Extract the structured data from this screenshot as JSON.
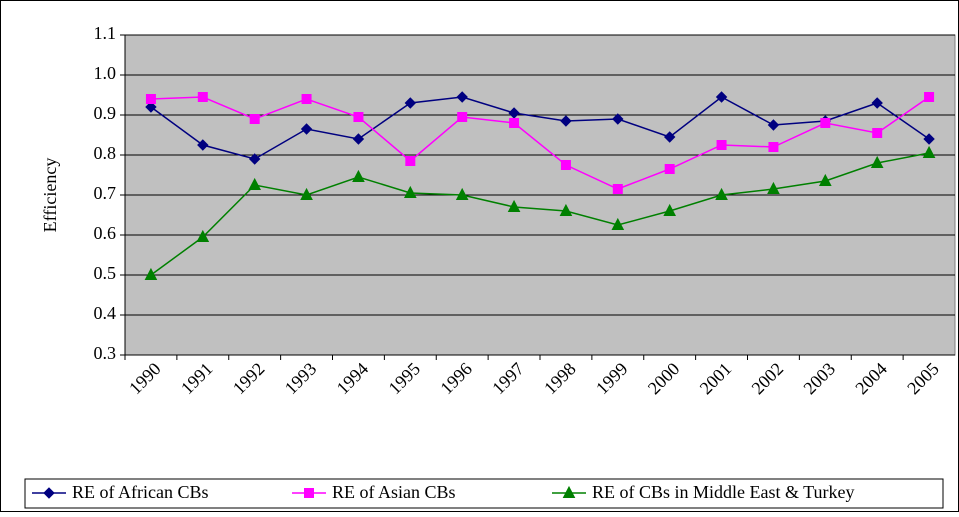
{
  "chart_data": {
    "type": "line",
    "y_label": "Efficiency",
    "categories": [
      "1990",
      "1991",
      "1992",
      "1993",
      "1994",
      "1995",
      "1996",
      "1997",
      "1998",
      "1999",
      "2000",
      "2001",
      "2002",
      "2003",
      "2004",
      "2005"
    ],
    "series": [
      {
        "name": "RE of African CBs",
        "color": "#000080",
        "marker": "diamond",
        "values": [
          0.92,
          0.825,
          0.79,
          0.865,
          0.84,
          0.93,
          0.945,
          0.905,
          0.885,
          0.89,
          0.845,
          0.945,
          0.875,
          0.885,
          0.93,
          0.84
        ]
      },
      {
        "name": "RE of Asian CBs",
        "color": "#ff00ff",
        "marker": "square",
        "values": [
          0.94,
          0.945,
          0.89,
          0.94,
          0.895,
          0.785,
          0.895,
          0.88,
          0.775,
          0.715,
          0.765,
          0.825,
          0.82,
          0.88,
          0.855,
          0.945
        ]
      },
      {
        "name": "RE of CBs in Middle East & Turkey",
        "color": "#008000",
        "marker": "triangle",
        "values": [
          0.5,
          0.595,
          0.725,
          0.7,
          0.745,
          0.705,
          0.7,
          0.67,
          0.66,
          0.625,
          0.66,
          0.7,
          0.715,
          0.735,
          0.78,
          0.805
        ]
      }
    ],
    "ylim": [
      0.3,
      1.1
    ],
    "yticks": [
      0.3,
      0.4,
      0.5,
      0.6,
      0.7,
      0.8,
      0.9,
      {
        "value": 1.0,
        "label": "1.0"
      },
      1.1
    ],
    "grid": true,
    "plot_background": "#c0c0c0",
    "legend": "bottom"
  }
}
